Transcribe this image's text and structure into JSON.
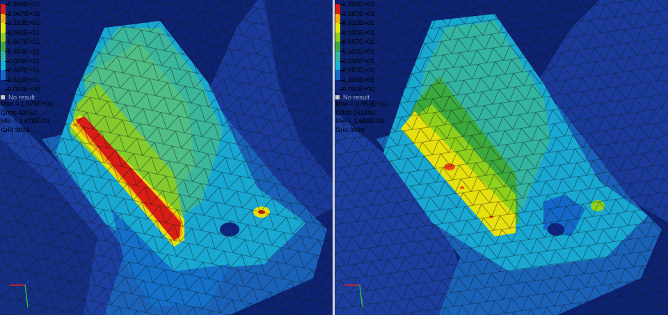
{
  "legend": {
    "levels": [
      "1.200E+02",
      "1.067E+02",
      "9.333E+01",
      "8.000E+01",
      "6.667E+01",
      "5.333E+01",
      "4.000E+01",
      "2.667E+01",
      "1.333E+01",
      "0.000E+00"
    ],
    "colors": [
      "#d81e14",
      "#ee4a10",
      "#f2ae0a",
      "#e6e80c",
      "#8fd11a",
      "#3caa3c",
      "#34b5a2",
      "#14b6d6",
      "#1469c8",
      "#0c2682"
    ]
  },
  "no_result_label": "No result",
  "left_view": {
    "max": "Max = 1.575E+02",
    "grids": "Grids 43051",
    "min": "Min = 1.678E-03",
    "grid": "Grid 3623"
  },
  "right_view": {
    "max": "Max = 9.953E+01",
    "grids": "Grids 162499",
    "min": "Min = 1.680E-03",
    "grid": "Grid 3620"
  },
  "triad_icon": "xyz-axis-triad-icon"
}
